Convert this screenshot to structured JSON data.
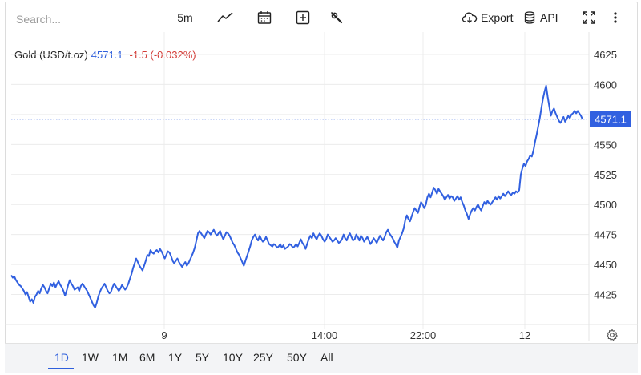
{
  "toolbar": {
    "search_placeholder": "Search...",
    "interval": "5m",
    "export_label": "Export",
    "api_label": "API",
    "icons": [
      "line-chart-icon",
      "calendar-icon",
      "add-indicator-icon",
      "wrench-icon",
      "cloud-download-icon",
      "database-icon",
      "fullscreen-icon",
      "more-vertical-icon"
    ]
  },
  "legend": {
    "symbol": "Gold (USD/t.oz)",
    "price": "4571.1",
    "change": "-1.5 (-0.032%)"
  },
  "colors": {
    "line": "#3160e0",
    "up": "#2e5fdc",
    "down": "#d33b36",
    "grid": "#ececec"
  },
  "ranges": [
    "1D",
    "1W",
    "1M",
    "6M",
    "1Y",
    "5Y",
    "10Y",
    "25Y",
    "50Y",
    "All"
  ],
  "active_range": "1D",
  "chart_data": {
    "type": "line",
    "series": [
      {
        "name": "Gold (USD/t.oz)",
        "values": [
          4441,
          4439,
          4440,
          4437,
          4435,
          4433,
          4432,
          4430,
          4428,
          4425,
          4427,
          4423,
          4419,
          4421,
          4418,
          4423,
          4425,
          4428,
          4426,
          4430,
          4433,
          4431,
          4428,
          4426,
          4430,
          4434,
          4432,
          4435,
          4431,
          4434,
          4436,
          4433,
          4431,
          4428,
          4424,
          4428,
          4433,
          4437,
          4434,
          4432,
          4429,
          4430,
          4431,
          4428,
          4432,
          4434,
          4432,
          4430,
          4428,
          4425,
          4422,
          4419,
          4416,
          4414,
          4418,
          4423,
          4427,
          4430,
          4432,
          4434,
          4431,
          4428,
          4426,
          4427,
          4431,
          4434,
          4432,
          4430,
          4428,
          4430,
          4433,
          4431,
          4429,
          4431,
          4434,
          4438,
          4442,
          4447,
          4451,
          4455,
          4452,
          4449,
          4447,
          4445,
          4449,
          4453,
          4458,
          4457,
          4462,
          4460,
          4459,
          4461,
          4462,
          4460,
          4463,
          4461,
          4458,
          4455,
          4458,
          4461,
          4460,
          4457,
          4453,
          4451,
          4453,
          4455,
          4452,
          4450,
          4448,
          4450,
          4452,
          4449,
          4451,
          4454,
          4457,
          4460,
          4464,
          4470,
          4476,
          4478,
          4476,
          4474,
          4472,
          4475,
          4478,
          4477,
          4475,
          4477,
          4479,
          4476,
          4474,
          4476,
          4478,
          4474,
          4471,
          4474,
          4477,
          4476,
          4474,
          4471,
          4468,
          4466,
          4463,
          4460,
          4458,
          4455,
          4452,
          4449,
          4453,
          4457,
          4461,
          4465,
          4470,
          4473,
          4475,
          4472,
          4470,
          4474,
          4471,
          4469,
          4470,
          4473,
          4470,
          4467,
          4466,
          4465,
          4467,
          4466,
          4464,
          4465,
          4467,
          4464,
          4466,
          4463,
          4464,
          4465,
          4467,
          4466,
          4464,
          4465,
          4467,
          4465,
          4468,
          4471,
          4468,
          4466,
          4463,
          4467,
          4471,
          4474,
          4472,
          4476,
          4473,
          4471,
          4474,
          4476,
          4474,
          4471,
          4469,
          4471,
          4475,
          4473,
          4471,
          4469,
          4470,
          4472,
          4470,
          4468,
          4469,
          4471,
          4475,
          4472,
          4470,
          4474,
          4476,
          4473,
          4470,
          4471,
          4475,
          4473,
          4470,
          4474,
          4472,
          4469,
          4471,
          4473,
          4470,
          4467,
          4469,
          4472,
          4470,
          4468,
          4471,
          4474,
          4472,
          4470,
          4473,
          4477,
          4479,
          4476,
          4474,
          4472,
          4469,
          4467,
          4464,
          4470,
          4473,
          4476,
          4480,
          4487,
          4491,
          4488,
          4486,
          4490,
          4494,
          4497,
          4495,
          4493,
          4498,
          4502,
          4500,
          4497,
          4500,
          4506,
          4509,
          4506,
          4510,
          4514,
          4512,
          4509,
          4513,
          4511,
          4509,
          4507,
          4504,
          4506,
          4508,
          4505,
          4507,
          4506,
          4503,
          4505,
          4507,
          4504,
          4506,
          4502,
          4499,
          4495,
          4492,
          4488,
          4492,
          4495,
          4497,
          4495,
          4498,
          4500,
          4497,
          4495,
          4499,
          4502,
          4500,
          4503,
          4501,
          4500,
          4502,
          4504,
          4506,
          4504,
          4507,
          4505,
          4507,
          4509,
          4507,
          4509,
          4511,
          4509,
          4508,
          4510,
          4509,
          4511,
          4510,
          4512,
          4525,
          4530,
          4534,
          4532,
          4536,
          4538,
          4541,
          4540,
          4545,
          4552,
          4558,
          4565,
          4572,
          4580,
          4588,
          4594,
          4599,
          4590,
          4582,
          4574,
          4578,
          4580,
          4576,
          4573,
          4570,
          4568,
          4570,
          4573,
          4569,
          4571,
          4574,
          4572,
          4575,
          4576,
          4578,
          4576,
          4578,
          4576,
          4574,
          4571
        ]
      }
    ],
    "x_ticks": [
      "9",
      "14:00",
      "22:00",
      "12"
    ],
    "y_ticks": [
      4425,
      4450,
      4475,
      4500,
      4525,
      4550,
      4575,
      4600,
      4625
    ],
    "y_label_visible": [
      4425,
      4450,
      4475,
      4500,
      4525,
      4550,
      4600,
      4625
    ],
    "ylim": [
      4400,
      4637
    ],
    "last_value": 4571.1,
    "last_value_label": "4571.1",
    "grid": true
  }
}
